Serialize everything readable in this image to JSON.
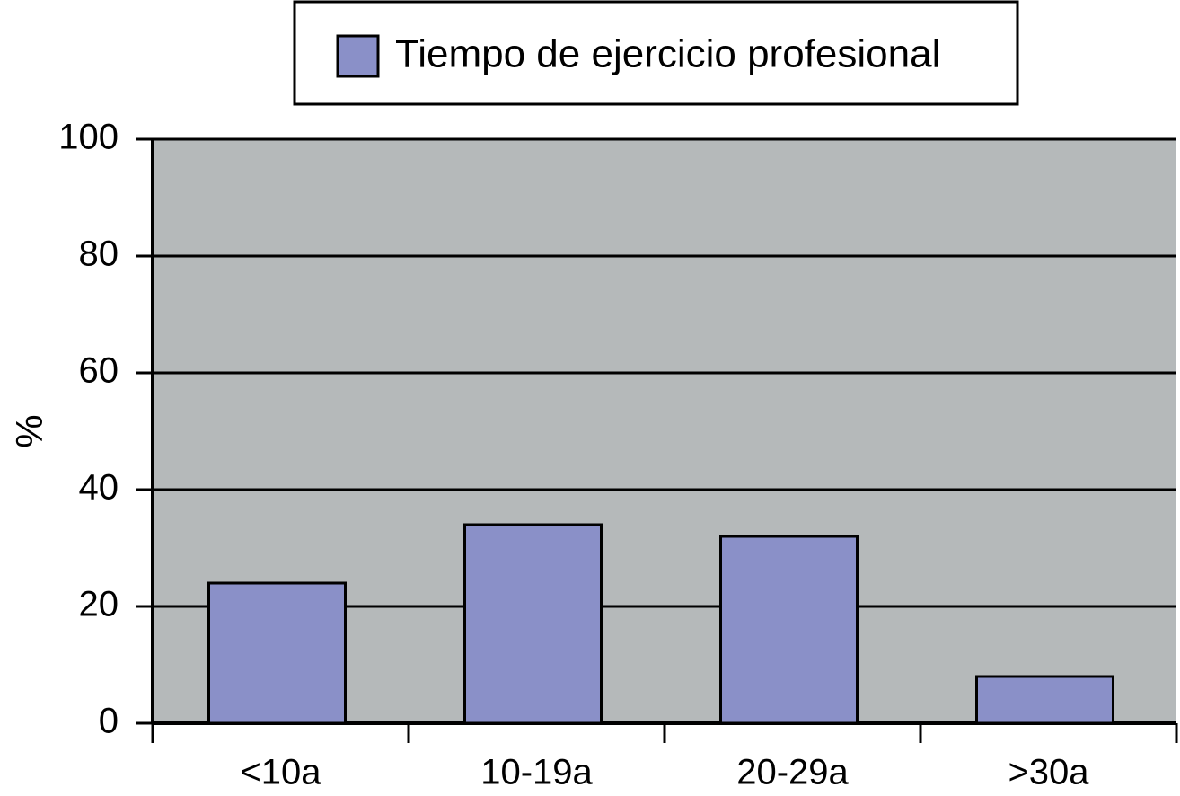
{
  "chart_data": {
    "type": "bar",
    "y_label": "%",
    "categories": [
      "<10a",
      "10-19a",
      "20-29a",
      ">30a"
    ],
    "series": [
      {
        "name": "Tiempo de ejercicio profesional",
        "color": "#8a90c8",
        "values": [
          24,
          34,
          32,
          8
        ]
      }
    ],
    "ylim": [
      0,
      100
    ],
    "yticks": [
      0,
      20,
      40,
      60,
      80,
      100
    ],
    "grid": true,
    "background": "#b5b9ba",
    "legend": "top"
  }
}
